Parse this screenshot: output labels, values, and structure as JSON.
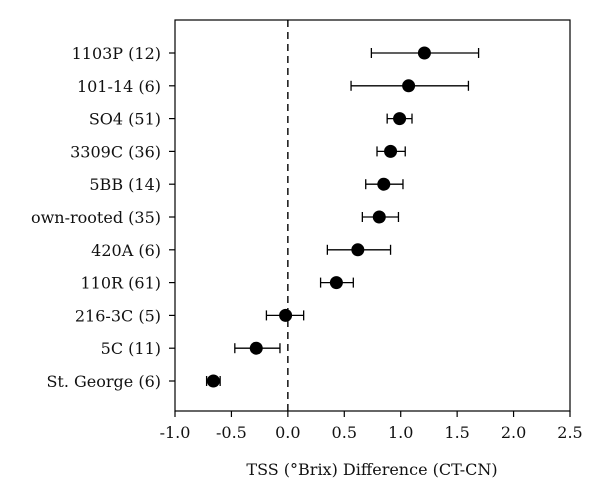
{
  "chart_data": {
    "type": "scatter",
    "orientation": "horizontal",
    "title": "",
    "xlabel": "TSS (°Brix) Difference (CT-CN)",
    "ylabel": "",
    "xlim": [
      -1.0,
      2.5
    ],
    "x_ticks": [
      "-1.0",
      "-0.5",
      "0.0",
      "0.5",
      "1.0",
      "1.5",
      "2.0",
      "2.5"
    ],
    "x_tick_values": [
      -1.0,
      -0.5,
      0.0,
      0.5,
      1.0,
      1.5,
      2.0,
      2.5
    ],
    "reference_line": {
      "x": 0.0,
      "style": "dashed"
    },
    "grid": false,
    "legend": "none",
    "colors": {
      "marker": "#000000",
      "errorbar": "#000000"
    },
    "categories": [
      "1103P (12)",
      "101-14 (6)",
      "SO4 (51)",
      "3309C (36)",
      "5BB (14)",
      "own-rooted (35)",
      "420A (6)",
      "110R (61)",
      "216-3C (5)",
      "5C (11)",
      "St. George (6)"
    ],
    "values": [
      1.21,
      1.07,
      0.99,
      0.91,
      0.85,
      0.81,
      0.62,
      0.43,
      -0.02,
      -0.28,
      -0.66
    ],
    "err_low": [
      0.74,
      0.56,
      0.88,
      0.79,
      0.69,
      0.66,
      0.35,
      0.29,
      -0.19,
      -0.47,
      -0.72
    ],
    "err_high": [
      1.69,
      1.6,
      1.1,
      1.04,
      1.02,
      0.98,
      0.91,
      0.58,
      0.14,
      -0.07,
      -0.6
    ]
  }
}
